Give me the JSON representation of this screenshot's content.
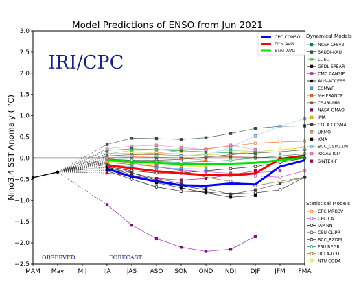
{
  "chart_data": {
    "type": "line",
    "title": "Model Predictions of ENSO from Jun 2021",
    "ylabel": "Nino3.4 SST Anomaly ( °C)",
    "xlabel": "",
    "x_categories": [
      "MAM",
      "May",
      "MJJ",
      "JJA",
      "JAS",
      "ASO",
      "SON",
      "OND",
      "NDJ",
      "DJF",
      "JFM",
      "FMA"
    ],
    "ylim": [
      -2.5,
      3.0
    ],
    "yticks": [
      "3.0",
      "2.5",
      "2.0",
      "1.5",
      "1.0",
      "0.5",
      "0.0",
      "−0.5",
      "−1.0",
      "−1.5",
      "−2.0",
      "−2.5"
    ],
    "grid": false,
    "watermark": "IRI/CPC",
    "observed_label": "OBSERVED",
    "forecast_label": "FORECAST",
    "observed": {
      "x": [
        "MAM",
        "May"
      ],
      "y": [
        -0.46,
        -0.33
      ]
    },
    "average_lines": [
      {
        "name": "CPC CONSOL",
        "color": "#0000ff",
        "x_start": "JJA",
        "values": [
          -0.25,
          -0.44,
          -0.55,
          -0.64,
          -0.65,
          -0.6,
          -0.62,
          -0.2,
          -0.05
        ]
      },
      {
        "name": "DYN AVG",
        "color": "#ff0000",
        "x_start": "JJA",
        "values": [
          -0.17,
          -0.24,
          -0.31,
          -0.36,
          -0.4,
          -0.41,
          -0.36,
          -0.02,
          0.06
        ]
      },
      {
        "name": "STAT AVG",
        "color": "#00e000",
        "x_start": "JJA",
        "values": [
          -0.05,
          -0.08,
          -0.11,
          -0.14,
          -0.13,
          -0.13,
          -0.11,
          -0.05,
          0.02
        ]
      }
    ],
    "legend_dynamical_title": "Dynamical Models",
    "legend_statistical_title": "Statistical Models",
    "dynamical_models": [
      {
        "name": "NCEP CFSv2",
        "color": "#008b45",
        "marker": "square",
        "x_start": "JJA",
        "values": [
          0.18,
          0.22,
          0.2,
          0.17,
          0.15,
          0.12,
          0.1
        ]
      },
      {
        "name": "SAUDI-KAU",
        "color": "#2f4f4f",
        "marker": "square",
        "x_start": "JJA",
        "values": [
          0.32,
          0.47,
          0.46,
          0.44,
          0.48,
          0.58,
          0.7,
          0.75,
          0.76
        ]
      },
      {
        "name": "LDEO",
        "color": "#66cc66",
        "marker": "square",
        "x_start": "JJA",
        "values": [
          0.1,
          0.18,
          0.2,
          0.22,
          0.2,
          0.18,
          0.16
        ]
      },
      {
        "name": "GFDL SPEAR",
        "color": "#000000",
        "marker": "square",
        "x_start": "JJA",
        "values": [
          -0.28,
          -0.44,
          -0.58,
          -0.7,
          -0.82,
          -0.92,
          -0.88
        ]
      },
      {
        "name": "CMC CANSIP",
        "color": "#cc33cc",
        "marker": "square",
        "x_start": "JJA",
        "values": [
          -0.05,
          -0.12,
          -0.2,
          -0.28,
          -0.32,
          -0.36,
          -0.35,
          -0.3
        ]
      },
      {
        "name": "AUS-ACCESS",
        "color": "#000000",
        "marker": "square",
        "x_start": "JJA",
        "values": [
          -0.22,
          -0.35,
          -0.52,
          -0.63,
          -0.68
        ]
      },
      {
        "name": "ECMWF",
        "color": "#3fa9f5",
        "marker": "square",
        "x_start": "JJA",
        "values": [
          -0.15,
          -0.2,
          -0.22,
          -0.25,
          -0.26
        ]
      },
      {
        "name": "MetFRANCE",
        "color": "#ff6600",
        "marker": "square",
        "x_start": "JJA",
        "values": [
          -0.02,
          0.03,
          0.02,
          0.0,
          -0.05
        ]
      },
      {
        "name": "CS-IRI-MM",
        "color": "#a0522d",
        "marker": "square",
        "x_start": "JJA",
        "values": [
          0.05,
          0.08,
          0.08,
          0.06,
          0.05,
          0.03,
          0.02,
          0.0
        ]
      },
      {
        "name": "NASA GMAO",
        "color": "#8b008b",
        "marker": "square",
        "x_start": "JJA",
        "values": [
          -1.1,
          -1.58,
          -1.9,
          -2.1,
          -2.2,
          -2.15,
          -1.85
        ]
      },
      {
        "name": "JMA",
        "color": "#ffcc00",
        "marker": "square",
        "x_start": "JJA",
        "values": [
          -0.1,
          -0.12,
          -0.15,
          -0.18,
          -0.2
        ]
      },
      {
        "name": "COLA CCSM4",
        "color": "#404040",
        "marker": "square",
        "x_start": "JJA",
        "values": [
          -0.12,
          -0.35,
          -0.48,
          -0.6,
          -0.72,
          -0.85,
          -0.75,
          -0.6,
          -0.45
        ]
      },
      {
        "name": "UKMO",
        "color": "#ff9966",
        "marker": "square",
        "x_start": "JJA",
        "values": [
          -0.08,
          -0.1,
          -0.12,
          -0.15
        ]
      },
      {
        "name": "KMA",
        "color": "#000000",
        "marker": "square",
        "x_start": "JJA",
        "values": [
          -0.2,
          -0.4,
          -0.55,
          -0.65,
          -0.75
        ]
      },
      {
        "name": "BCC_CSM11m",
        "color": "#99ccff",
        "marker": "square",
        "x_start": "JJA",
        "values": [
          0.0,
          0.05,
          0.05,
          0.05,
          0.08,
          0.25,
          0.52,
          0.75,
          0.93
        ]
      },
      {
        "name": "IOCAS ICM",
        "color": "#ff88cc",
        "marker": "square",
        "x_start": "JJA",
        "values": [
          0.22,
          0.28,
          0.3,
          0.25,
          0.2,
          0.3,
          0.2
        ]
      },
      {
        "name": "SINTEX-F",
        "color": "#aa0066",
        "marker": "square",
        "x_start": "JJA",
        "values": [
          -0.35,
          -0.42,
          -0.48,
          -0.52,
          -0.48,
          -0.4,
          -0.3
        ]
      }
    ],
    "statistical_models": [
      {
        "name": "CPC MRKOV",
        "color": "#ff6600",
        "marker": "circle",
        "x_start": "JJA",
        "values": [
          0.05,
          0.08,
          0.12,
          0.18,
          0.22,
          0.28,
          0.35,
          0.38,
          0.4
        ]
      },
      {
        "name": "CPC CA",
        "color": "#cc33cc",
        "marker": "circle",
        "x_start": "JJA",
        "values": [
          -0.15,
          -0.25,
          -0.3,
          -0.35,
          -0.38,
          -0.4,
          -0.42,
          -0.45,
          -0.3
        ]
      },
      {
        "name": "IAP-NN",
        "color": "#000000",
        "marker": "circle",
        "x_start": "JJA",
        "values": [
          -0.3,
          -0.5,
          -0.68,
          -0.78,
          -0.8,
          -0.85,
          -0.82,
          -0.75,
          -0.45
        ]
      },
      {
        "name": "CSU CLIPR",
        "color": "#333333",
        "marker": "circle",
        "x_start": "JJA",
        "values": [
          -0.02,
          -0.05,
          -0.05,
          -0.03,
          0.02,
          0.08,
          0.12,
          0.15,
          0.2
        ]
      },
      {
        "name": "BCC_RZDM",
        "color": "#000000",
        "marker": "circle",
        "x_start": "JJA",
        "values": [
          -0.2,
          -0.3,
          -0.35,
          -0.35,
          -0.3,
          -0.25,
          -0.2,
          -0.1,
          0.0
        ]
      },
      {
        "name": "FSU REGR",
        "color": "#008b45",
        "marker": "circle",
        "x_start": "JJA",
        "values": [
          -0.05,
          -0.05,
          -0.08,
          -0.1,
          -0.08,
          -0.05,
          0.0,
          0.05,
          0.1
        ]
      },
      {
        "name": "UCLA-TCD",
        "color": "#806000",
        "marker": "circle",
        "x_start": "JJA",
        "values": [
          -0.1,
          -0.15,
          -0.2,
          -0.3,
          -0.45,
          -0.55,
          -0.65,
          -0.55,
          -0.45
        ]
      },
      {
        "name": "NTU CODA",
        "color": "#cccc00",
        "marker": "circle",
        "x_start": "JJA",
        "values": [
          0.1,
          0.12,
          0.12,
          0.1,
          0.08,
          0.1,
          0.15,
          0.2,
          0.25
        ]
      }
    ]
  }
}
